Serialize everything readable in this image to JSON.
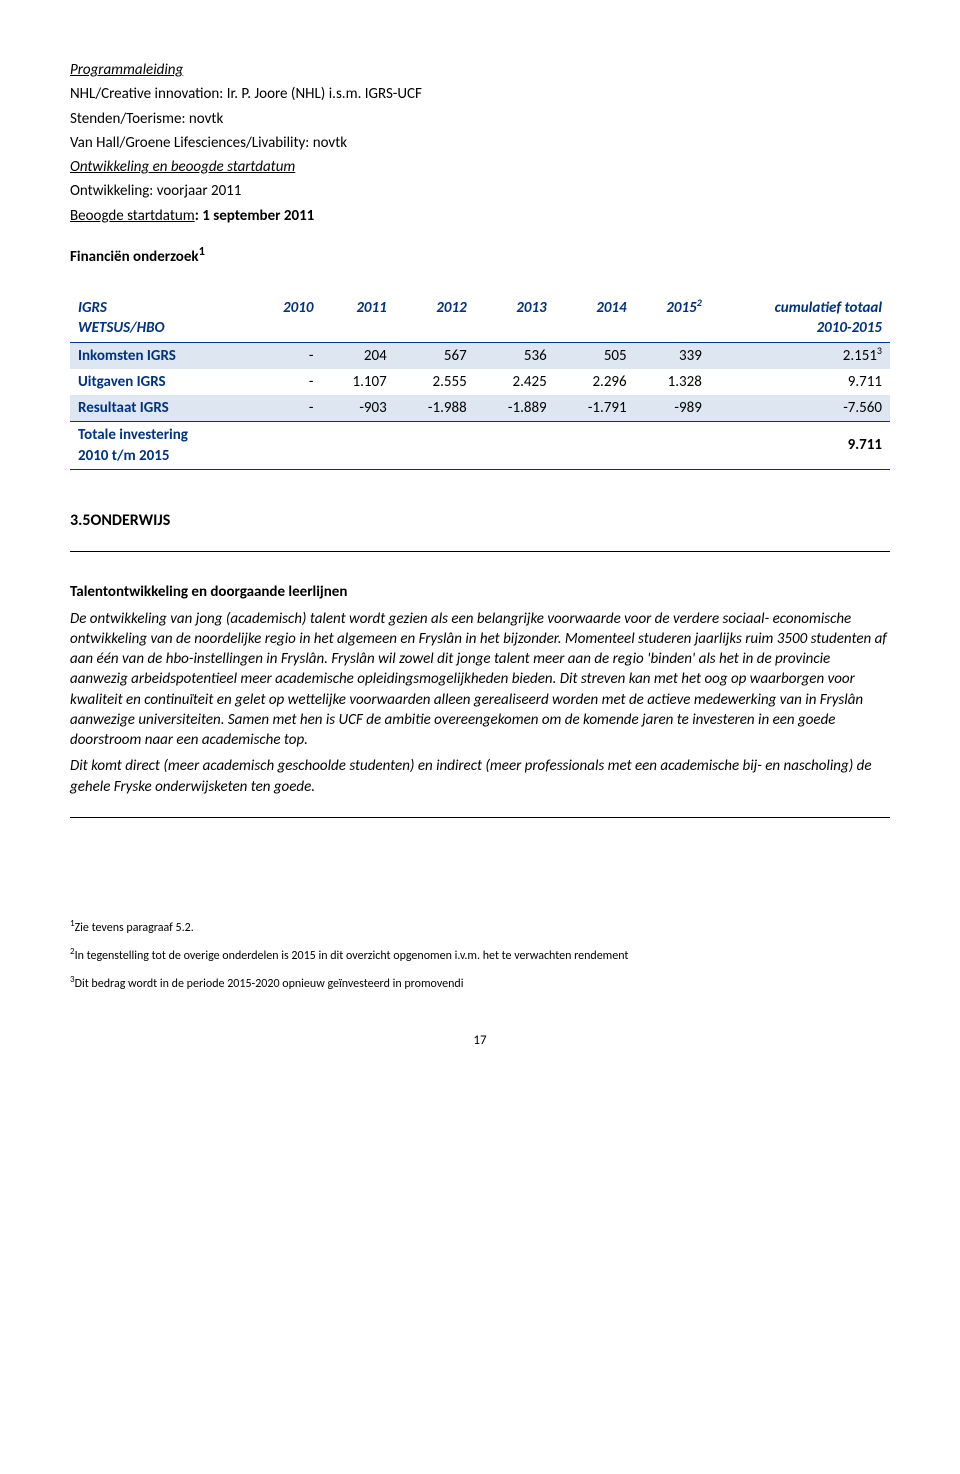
{
  "header": {
    "line1": "Programmaleiding",
    "line2": "NHL/Creative innovation: Ir. P. Joore (NHL) i.s.m. IGRS-UCF",
    "line3": "Stenden/Toerisme: novtk",
    "line4": "Van Hall/Groene Lifesciences/Livability: novtk",
    "line5": "Ontwikkeling en beoogde startdatum",
    "line6": "Ontwikkeling: voorjaar 2011",
    "line7a": "Beoogde startdatum",
    "line7b": ": 1 september 2011",
    "line8a": "Financiën onderzoek",
    "line8sup": "1"
  },
  "table": {
    "headers": {
      "col0_a": "IGRS",
      "col0_b": "WETSUS/HBO",
      "years": [
        "2010",
        "2011",
        "2012",
        "2013",
        "2014",
        "2015"
      ],
      "y2015_sup": "2",
      "cum_a": "cumulatief totaal",
      "cum_b": "2010-2015"
    },
    "rows": [
      {
        "label": "Inkomsten IGRS",
        "note": "3",
        "cells": [
          "-",
          "204",
          "567",
          "536",
          "505",
          "339",
          "2.151"
        ],
        "shade": true
      },
      {
        "label": "Uitgaven IGRS",
        "cells": [
          "-",
          "1.107",
          "2.555",
          "2.425",
          "2.296",
          "1.328",
          "9.711"
        ],
        "shade": false
      },
      {
        "label": "Resultaat IGRS",
        "cells": [
          "-",
          "-903",
          "-1.988",
          "-1.889",
          "-1.791",
          "-989",
          "-7.560"
        ],
        "shade": true
      }
    ],
    "footer": {
      "label_a": "Totale investering",
      "label_b": "2010 t/m 2015",
      "value": "9.711"
    },
    "colors": {
      "header_text": "#00337f",
      "shade_bg": "#dde6f1",
      "rule": "#00337f"
    }
  },
  "section": {
    "num": "3.5",
    "title": "ONDERWIJS"
  },
  "body": {
    "subhead": "Talentontwikkeling en doorgaande leerlijnen",
    "p1_italic": "De ontwikkeling van jong (academisch) talent wordt gezien als een belangrijke voorwaarde voor de verdere sociaal- economische ontwikkeling van de noordelijke regio in het algemeen en Fryslân in het bijzonder. Momenteel studeren jaarlijks ruim 3500 studenten af aan één van de hbo-instellingen in Fryslân. Fryslân wil zowel dit jonge talent meer aan de regio 'binden' als het in de provincie aanwezig arbeidspotentieel meer academische opleidingsmogelijkheden bieden. Dit streven kan met het oog op waarborgen voor kwaliteit en continuïteit en gelet op wettelijke voorwaarden alleen gerealiseerd worden met de actieve medewerking van in Fryslân aanwezige universiteiten. Samen met hen is UCF de ambitie overeengekomen om de komende jaren te investeren in een goede doorstroom naar een academische top.",
    "p2_plain": "Dit komt direct (meer academisch geschoolde studenten) en indirect (meer professionals met een academische bij- en nascholing) de gehele Fryske onderwijsketen ten goede."
  },
  "footnotes": {
    "f1_sup": "1",
    "f1": "Zie tevens paragraaf 5.2.",
    "f2_sup": "2",
    "f2": "In tegenstelling tot de overige onderdelen is 2015 in dit overzicht opgenomen i.v.m. het te verwachten rendement",
    "f3_sup": "3",
    "f3": "Dit bedrag wordt in de periode 2015-2020 opnieuw geïnvesteerd in promovendi"
  },
  "page": "17"
}
